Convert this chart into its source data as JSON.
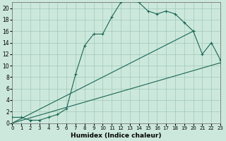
{
  "xlabel": "Humidex (Indice chaleur)",
  "background_color": "#cce8dc",
  "grid_color": "#a0c8b8",
  "line_color": "#1a6655",
  "xlim": [
    0,
    23
  ],
  "ylim": [
    0,
    21
  ],
  "xticks": [
    0,
    1,
    2,
    3,
    4,
    5,
    6,
    7,
    8,
    9,
    10,
    11,
    12,
    13,
    14,
    15,
    16,
    17,
    18,
    19,
    20,
    21,
    22,
    23
  ],
  "yticks": [
    0,
    2,
    4,
    6,
    8,
    10,
    12,
    14,
    16,
    18,
    20
  ],
  "series1_x": [
    0,
    1,
    2,
    3,
    4,
    5,
    6,
    7,
    8,
    9,
    10,
    11,
    12,
    13,
    14,
    15,
    16,
    17,
    18,
    19,
    20,
    21,
    22,
    23
  ],
  "series1_y": [
    1,
    1,
    0.5,
    0.5,
    1.0,
    1.5,
    2.5,
    8.5,
    13.5,
    15.5,
    15.5,
    18.5,
    21.0,
    21.5,
    21.0,
    19.5,
    19.0,
    19.5,
    19.0,
    17.5,
    16.0,
    12.0,
    14.0,
    11.0
  ],
  "series2_x": [
    0,
    23
  ],
  "series2_y": [
    0,
    10.5
  ],
  "series3_x": [
    0,
    20
  ],
  "series3_y": [
    0,
    16.0
  ]
}
